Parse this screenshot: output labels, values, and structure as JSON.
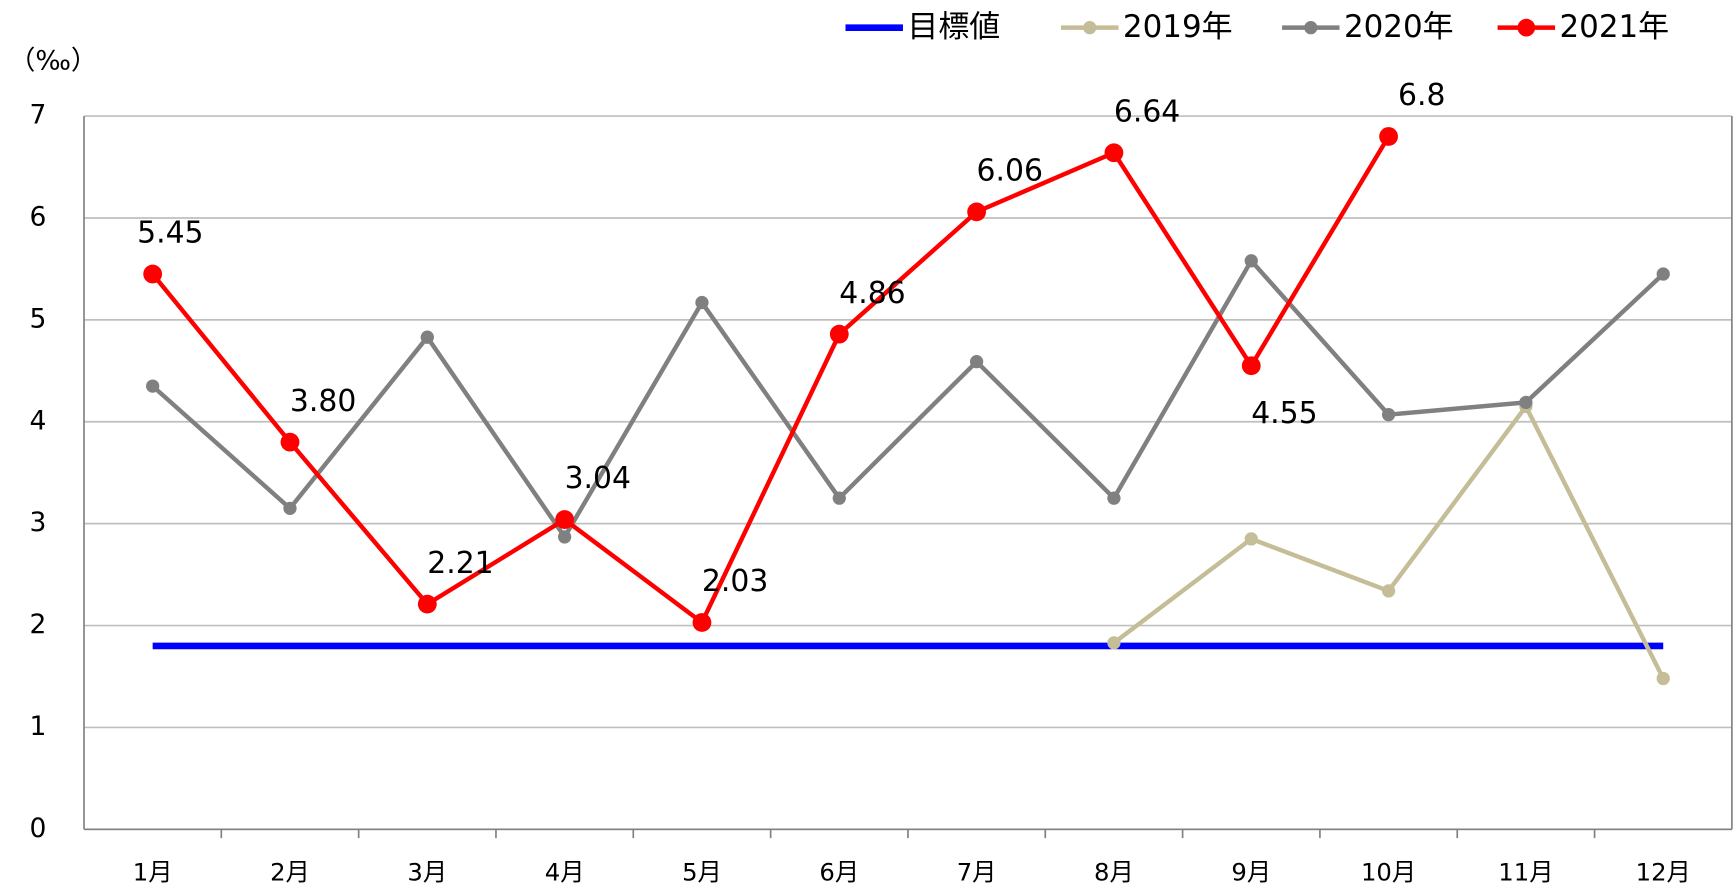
{
  "chart_data": {
    "type": "line",
    "y_unit_label": "（‰）",
    "categories": [
      "1月",
      "2月",
      "3月",
      "4月",
      "5月",
      "6月",
      "7月",
      "8月",
      "9月",
      "10月",
      "11月",
      "12月"
    ],
    "series": [
      {
        "name": "目標値",
        "color": "#0000ff",
        "marker": false,
        "values": [
          1.8,
          1.8,
          1.8,
          1.8,
          1.8,
          1.8,
          1.8,
          1.8,
          1.8,
          1.8,
          1.8,
          1.8
        ]
      },
      {
        "name": "2019年",
        "color": "#c4bd97",
        "marker": true,
        "values": [
          null,
          null,
          null,
          null,
          null,
          null,
          null,
          1.83,
          2.85,
          2.34,
          4.15,
          1.48
        ]
      },
      {
        "name": "2020年",
        "color": "#808080",
        "marker": true,
        "values": [
          4.35,
          3.15,
          4.83,
          2.87,
          5.17,
          3.25,
          4.59,
          3.25,
          5.58,
          4.07,
          4.19,
          5.45
        ]
      },
      {
        "name": "2021年",
        "color": "#ff0000",
        "marker": true,
        "values": [
          5.45,
          3.8,
          2.21,
          3.04,
          2.03,
          4.86,
          6.06,
          6.64,
          4.55,
          6.8,
          null,
          null
        ],
        "value_labels": [
          "5.45",
          "3.80",
          "2.21",
          "3.04",
          "2.03",
          "4.86",
          "6.06",
          "6.64",
          "4.55",
          "6.8",
          null,
          null
        ]
      }
    ],
    "ylim": [
      0,
      7
    ],
    "yticks": [
      0,
      1,
      2,
      3,
      4,
      5,
      6,
      7
    ],
    "grid": true,
    "legend": "top"
  }
}
